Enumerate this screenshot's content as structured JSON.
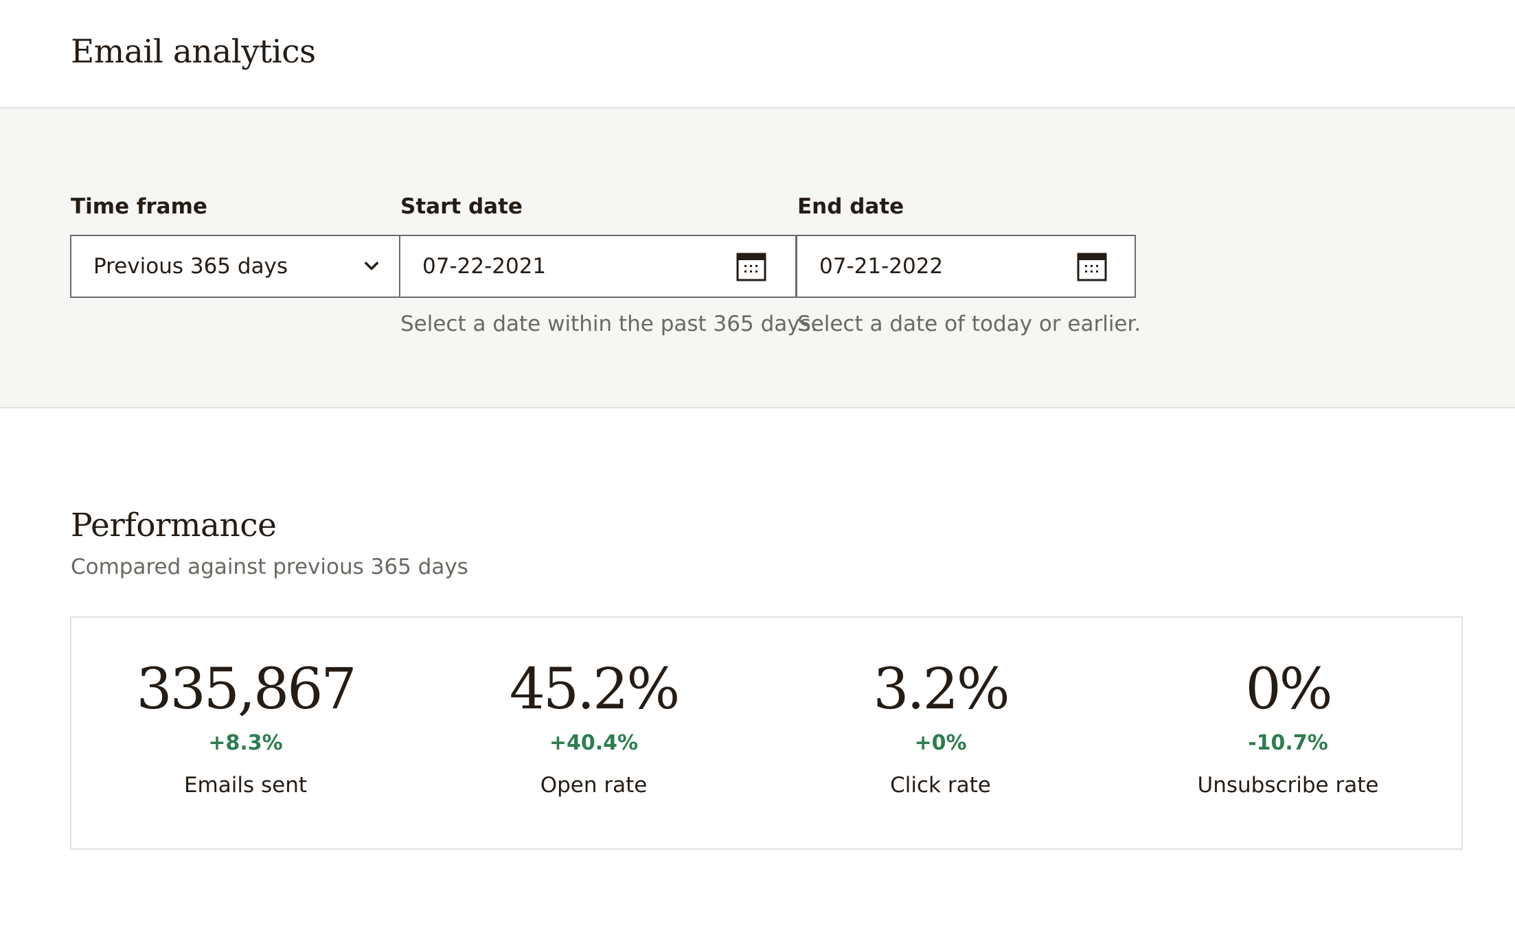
{
  "page": {
    "title": "Email analytics"
  },
  "filters": {
    "time_frame": {
      "label": "Time frame",
      "value": "Previous 365 days",
      "icon": "chevron-down-icon"
    },
    "start_date": {
      "label": "Start date",
      "value": "07-22-2021",
      "icon": "calendar-icon",
      "helper": "Select a date within the past 365 days."
    },
    "end_date": {
      "label": "End date",
      "value": "07-21-2022",
      "icon": "calendar-icon",
      "helper": "Select a date of today or earlier."
    }
  },
  "performance": {
    "title": "Performance",
    "subtitle": "Compared against previous 365 days",
    "stats": [
      {
        "value": "335,867",
        "change": "+8.3%",
        "label": "Emails sent"
      },
      {
        "value": "45.2%",
        "change": "+40.4%",
        "label": "Open rate"
      },
      {
        "value": "3.2%",
        "change": "+0%",
        "label": "Click rate"
      },
      {
        "value": "0%",
        "change": "-10.7%",
        "label": "Unsubscribe rate"
      }
    ]
  },
  "colors": {
    "text": "#241c15",
    "muted": "#6b6862",
    "positive": "#2e7d4f",
    "band": "#f6f6f4",
    "border": "#e1e1de"
  }
}
